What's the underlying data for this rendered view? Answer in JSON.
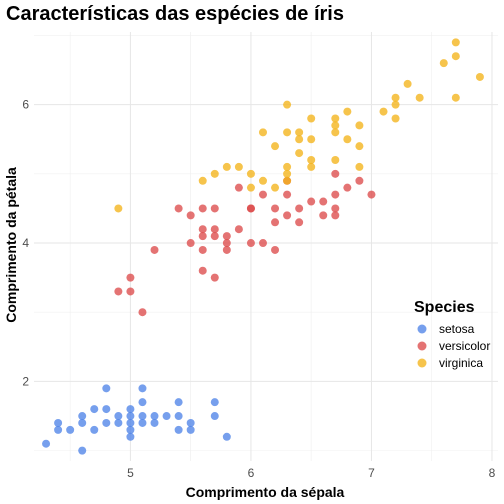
{
  "chart_data": {
    "type": "scatter",
    "title": "Características das espécies de íris",
    "xlabel": "Comprimento da sépala",
    "ylabel": "Comprimento da pétala",
    "xlim": [
      4.2,
      8.05
    ],
    "ylim": [
      0.85,
      7.05
    ],
    "x_ticks": [
      5,
      6,
      7,
      8
    ],
    "y_ticks": [
      2,
      4,
      6
    ],
    "grid": true,
    "legend": {
      "title": "Species",
      "position": "right"
    },
    "series": [
      {
        "name": "setosa",
        "color": "#4f84e8",
        "points": [
          [
            4.3,
            1.1
          ],
          [
            4.4,
            1.3
          ],
          [
            4.4,
            1.4
          ],
          [
            4.5,
            1.3
          ],
          [
            4.6,
            1.0
          ],
          [
            4.6,
            1.4
          ],
          [
            4.6,
            1.5
          ],
          [
            4.7,
            1.3
          ],
          [
            4.7,
            1.6
          ],
          [
            4.8,
            1.4
          ],
          [
            4.8,
            1.6
          ],
          [
            4.8,
            1.9
          ],
          [
            4.9,
            1.4
          ],
          [
            4.9,
            1.5
          ],
          [
            5.0,
            1.2
          ],
          [
            5.0,
            1.3
          ],
          [
            5.0,
            1.4
          ],
          [
            5.0,
            1.5
          ],
          [
            5.0,
            1.6
          ],
          [
            5.1,
            1.4
          ],
          [
            5.1,
            1.5
          ],
          [
            5.1,
            1.7
          ],
          [
            5.1,
            1.9
          ],
          [
            5.2,
            1.4
          ],
          [
            5.2,
            1.5
          ],
          [
            5.3,
            1.5
          ],
          [
            5.4,
            1.3
          ],
          [
            5.4,
            1.5
          ],
          [
            5.4,
            1.7
          ],
          [
            5.5,
            1.3
          ],
          [
            5.5,
            1.4
          ],
          [
            5.7,
            1.5
          ],
          [
            5.7,
            1.7
          ],
          [
            5.8,
            1.2
          ]
        ]
      },
      {
        "name": "versicolor",
        "color": "#dd4b4b",
        "points": [
          [
            4.9,
            3.3
          ],
          [
            5.0,
            3.3
          ],
          [
            5.0,
            3.5
          ],
          [
            5.1,
            3.0
          ],
          [
            5.2,
            3.9
          ],
          [
            5.4,
            4.5
          ],
          [
            5.5,
            4.0
          ],
          [
            5.5,
            4.4
          ],
          [
            5.6,
            3.6
          ],
          [
            5.6,
            3.9
          ],
          [
            5.6,
            4.1
          ],
          [
            5.6,
            4.2
          ],
          [
            5.6,
            4.5
          ],
          [
            5.7,
            3.5
          ],
          [
            5.7,
            4.1
          ],
          [
            5.7,
            4.2
          ],
          [
            5.7,
            4.5
          ],
          [
            5.8,
            3.9
          ],
          [
            5.8,
            4.0
          ],
          [
            5.8,
            4.1
          ],
          [
            5.9,
            4.2
          ],
          [
            5.9,
            4.8
          ],
          [
            6.0,
            4.0
          ],
          [
            6.0,
            4.5
          ],
          [
            6.0,
            4.5
          ],
          [
            6.1,
            4.0
          ],
          [
            6.1,
            4.7
          ],
          [
            6.2,
            3.9
          ],
          [
            6.2,
            4.3
          ],
          [
            6.2,
            4.5
          ],
          [
            6.3,
            4.4
          ],
          [
            6.3,
            4.7
          ],
          [
            6.3,
            4.9
          ],
          [
            6.4,
            4.3
          ],
          [
            6.4,
            4.5
          ],
          [
            6.5,
            4.6
          ],
          [
            6.6,
            4.4
          ],
          [
            6.6,
            4.6
          ],
          [
            6.7,
            4.4
          ],
          [
            6.7,
            4.5
          ],
          [
            6.7,
            4.7
          ],
          [
            6.7,
            5.0
          ],
          [
            6.8,
            4.8
          ],
          [
            6.9,
            4.9
          ],
          [
            7.0,
            4.7
          ]
        ]
      },
      {
        "name": "virginica",
        "color": "#f4b41a",
        "points": [
          [
            4.9,
            4.5
          ],
          [
            5.6,
            4.9
          ],
          [
            5.7,
            5.0
          ],
          [
            5.8,
            5.1
          ],
          [
            5.9,
            5.1
          ],
          [
            6.0,
            4.8
          ],
          [
            6.0,
            5.0
          ],
          [
            6.1,
            4.9
          ],
          [
            6.1,
            5.6
          ],
          [
            6.2,
            4.8
          ],
          [
            6.2,
            5.4
          ],
          [
            6.3,
            4.9
          ],
          [
            6.3,
            5.0
          ],
          [
            6.3,
            5.1
          ],
          [
            6.3,
            5.6
          ],
          [
            6.3,
            6.0
          ],
          [
            6.4,
            5.3
          ],
          [
            6.4,
            5.5
          ],
          [
            6.4,
            5.6
          ],
          [
            6.5,
            5.1
          ],
          [
            6.5,
            5.2
          ],
          [
            6.5,
            5.5
          ],
          [
            6.5,
            5.8
          ],
          [
            6.7,
            5.2
          ],
          [
            6.7,
            5.6
          ],
          [
            6.7,
            5.7
          ],
          [
            6.7,
            5.8
          ],
          [
            6.8,
            5.5
          ],
          [
            6.8,
            5.9
          ],
          [
            6.9,
            5.1
          ],
          [
            6.9,
            5.4
          ],
          [
            6.9,
            5.7
          ],
          [
            7.1,
            5.9
          ],
          [
            7.2,
            5.8
          ],
          [
            7.2,
            6.0
          ],
          [
            7.2,
            6.1
          ],
          [
            7.3,
            6.3
          ],
          [
            7.4,
            6.1
          ],
          [
            7.6,
            6.6
          ],
          [
            7.7,
            6.1
          ],
          [
            7.7,
            6.7
          ],
          [
            7.7,
            6.9
          ],
          [
            7.9,
            6.4
          ]
        ]
      }
    ]
  }
}
